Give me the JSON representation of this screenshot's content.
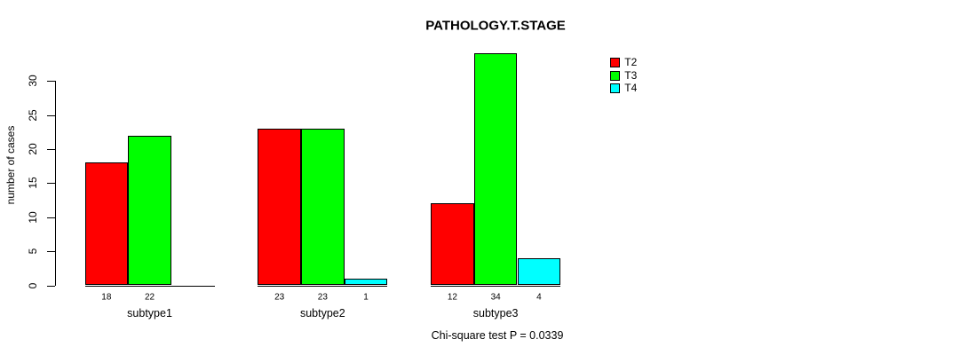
{
  "chart_data": {
    "type": "bar",
    "grouped": true,
    "title": "PATHOLOGY.T.STAGE",
    "xlabel": "",
    "ylabel": "number of cases",
    "categories": [
      "subtype1",
      "subtype2",
      "subtype3"
    ],
    "series": [
      {
        "name": "T2",
        "color": "#ff0000",
        "values": [
          18,
          23,
          12
        ]
      },
      {
        "name": "T3",
        "color": "#00ff00",
        "values": [
          22,
          23,
          34
        ]
      },
      {
        "name": "T4",
        "color": "#00ffff",
        "values": [
          0,
          1,
          4
        ]
      }
    ],
    "bar_value_labels": [
      [
        "18",
        "22",
        ""
      ],
      [
        "23",
        "23",
        "1"
      ],
      [
        "12",
        "34",
        "4"
      ]
    ],
    "ylim": [
      0,
      34
    ],
    "yticks": [
      0,
      5,
      10,
      15,
      20,
      25,
      30
    ],
    "grid": false,
    "legend": {
      "position": "right",
      "entries": [
        "T2",
        "T3",
        "T4"
      ]
    },
    "annotation": "Chi-square test P = 0.0339"
  }
}
